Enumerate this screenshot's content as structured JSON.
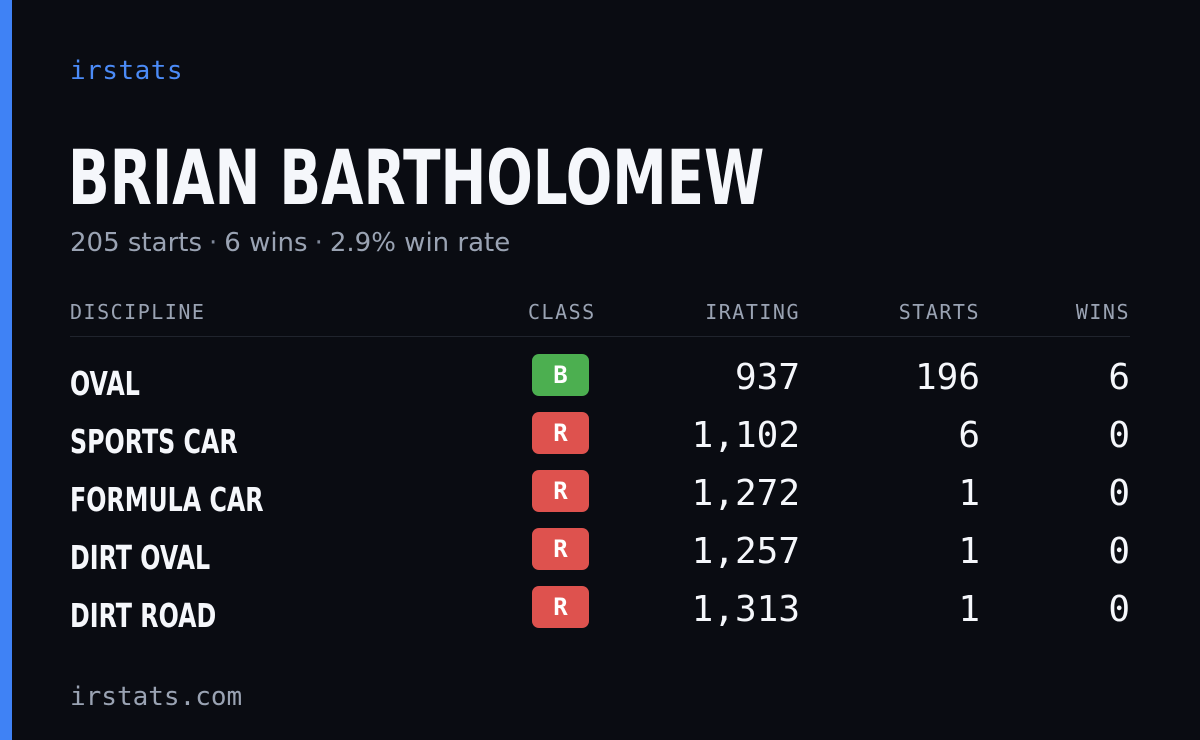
{
  "brand": "irstats",
  "driver": {
    "name": "BRIAN BARTHOLOMEW"
  },
  "summary": {
    "starts": "205 starts",
    "wins": "6 wins",
    "win_rate": "2.9% win rate",
    "separator": "·"
  },
  "table": {
    "headers": {
      "discipline": "DISCIPLINE",
      "class": "CLASS",
      "irating": "IRATING",
      "starts": "STARTS",
      "wins": "WINS"
    },
    "rows": [
      {
        "discipline": "OVAL",
        "class": "B",
        "class_color": "#4caf50",
        "irating": "937",
        "starts": "196",
        "wins": "6"
      },
      {
        "discipline": "SPORTS CAR",
        "class": "R",
        "class_color": "#de524e",
        "irating": "1,102",
        "starts": "6",
        "wins": "0"
      },
      {
        "discipline": "FORMULA CAR",
        "class": "R",
        "class_color": "#de524e",
        "irating": "1,272",
        "starts": "1",
        "wins": "0"
      },
      {
        "discipline": "DIRT OVAL",
        "class": "R",
        "class_color": "#de524e",
        "irating": "1,257",
        "starts": "1",
        "wins": "0"
      },
      {
        "discipline": "DIRT ROAD",
        "class": "R",
        "class_color": "#de524e",
        "irating": "1,313",
        "starts": "1",
        "wins": "0"
      }
    ]
  },
  "footer": {
    "url": "irstats.com"
  },
  "colors": {
    "background": "#0a0c12",
    "accent": "#3f82f5",
    "brand": "#4b8bf7",
    "muted_text": "#9aa3b3",
    "class_b": "#4caf50",
    "class_r": "#de524e"
  }
}
